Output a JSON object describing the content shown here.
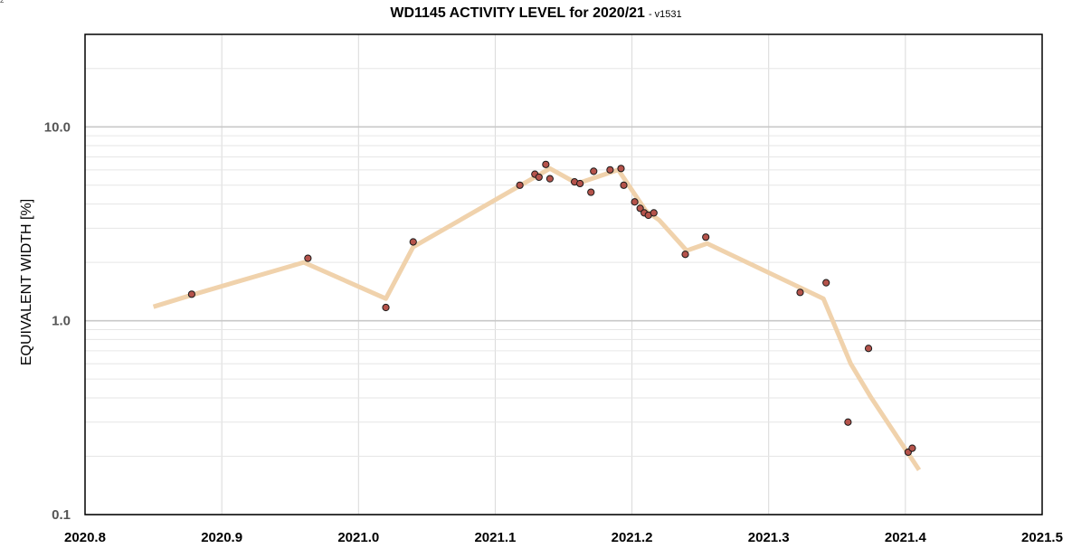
{
  "corner_mark": "2",
  "chart_data": {
    "type": "scatter",
    "title": "WD1145 ACTIVITY LEVEL for 2020/21",
    "subtitle": "- v1531",
    "xlabel": "",
    "ylabel": "EQUIVALENT WIDTH [%]",
    "xlim": [
      2020.8,
      2021.5
    ],
    "ylim": [
      0.1,
      30
    ],
    "yscale": "log",
    "grid": true,
    "x_ticks": [
      "2020.8",
      "2020.9",
      "2021.0",
      "2021.1",
      "2021.2",
      "2021.3",
      "2021.4",
      "2021.5"
    ],
    "y_ticks": [
      "0.1",
      "1.0",
      "10.0"
    ],
    "colors": {
      "points": "#b5534b",
      "point_edge": "#1a1a1a",
      "trend": "#f0d2ac",
      "grid": "#d9d9d9"
    },
    "series": [
      {
        "kind": "points",
        "x": [
          2020.878,
          2020.963,
          2021.02,
          2021.04,
          2021.118,
          2021.129,
          2021.132,
          2021.137,
          2021.14,
          2021.158,
          2021.162,
          2021.17,
          2021.172,
          2021.184,
          2021.192,
          2021.194,
          2021.202,
          2021.206,
          2021.209,
          2021.212,
          2021.216,
          2021.239,
          2021.254,
          2021.323,
          2021.342,
          2021.358,
          2021.373,
          2021.402,
          2021.405
        ],
        "y": [
          1.37,
          2.1,
          1.17,
          2.55,
          5.0,
          5.7,
          5.5,
          6.4,
          5.4,
          5.2,
          5.1,
          4.6,
          5.9,
          6.0,
          6.1,
          5.0,
          4.1,
          3.8,
          3.6,
          3.5,
          3.6,
          2.2,
          2.7,
          1.4,
          1.57,
          0.3,
          0.72,
          0.21,
          0.22
        ]
      },
      {
        "kind": "trend",
        "x": [
          2020.85,
          2020.88,
          2020.96,
          2021.02,
          2021.04,
          2021.14,
          2021.16,
          2021.19,
          2021.21,
          2021.22,
          2021.24,
          2021.255,
          2021.34,
          2021.36,
          2021.375,
          2021.41
        ],
        "y": [
          1.18,
          1.37,
          2.0,
          1.3,
          2.4,
          6.1,
          5.1,
          6.0,
          3.7,
          3.3,
          2.3,
          2.5,
          1.3,
          0.6,
          0.4,
          0.17
        ]
      }
    ]
  }
}
